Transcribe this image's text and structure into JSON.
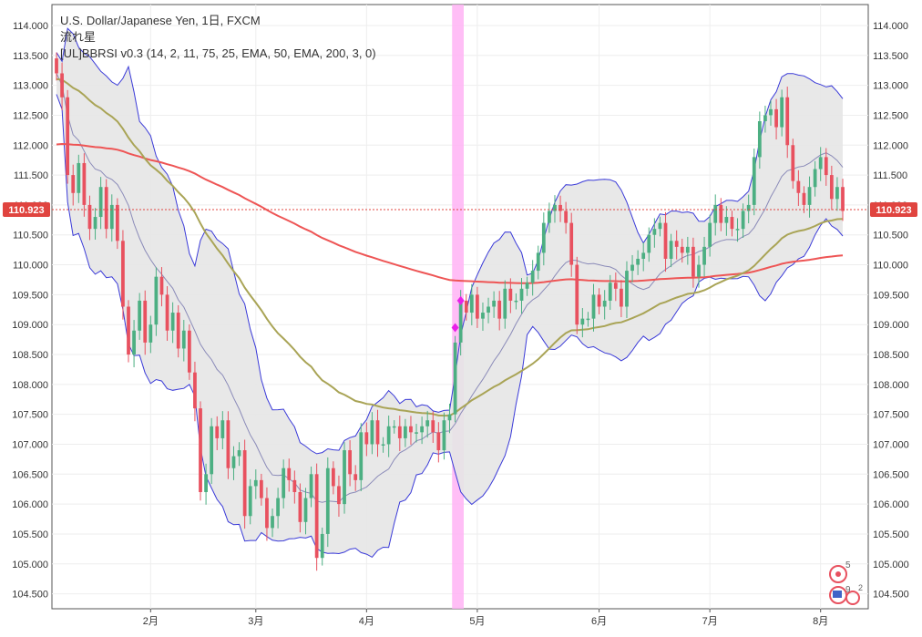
{
  "legend": {
    "symbol": "U.S. Dollar/Japanese Yen, 1日, FXCM",
    "pattern": "流れ星",
    "indicator": "[UL]BBRSI v0.3 (14, 2, 11, 75, 25, EMA, 50, EMA, 200, 3, 0)"
  },
  "colors": {
    "up": "#4caf82",
    "down": "#e8515f",
    "band_fill": "#e6e6e6",
    "band_line": "#3a3ad8",
    "basis_line": "#8a8ab8",
    "ema50": "#a9a456",
    "ema200": "#ee5555",
    "highlight": "#ffb3f5",
    "marker": "#e820e8",
    "price_label": "#e0443f"
  },
  "icons": {
    "badge1": "5",
    "badge2": "9",
    "badge3": "2"
  },
  "chart_data": {
    "type": "candlestick",
    "symbol": "USDJPY",
    "timeframe": "1D",
    "ylim": [
      104.25,
      114.35
    ],
    "y_ticks": [
      104.5,
      105.0,
      105.5,
      106.0,
      106.5,
      107.0,
      107.5,
      108.0,
      108.5,
      109.0,
      109.5,
      110.0,
      110.5,
      111.0,
      111.5,
      112.0,
      112.5,
      113.0,
      113.5,
      114.0
    ],
    "y_tick_labels": [
      "104.500",
      "105.000",
      "105.500",
      "106.000",
      "106.500",
      "107.000",
      "107.500",
      "108.000",
      "108.500",
      "109.000",
      "109.500",
      "110.000",
      "110.500",
      "111.000",
      "111.500",
      "112.000",
      "112.500",
      "113.000",
      "113.500",
      "114.000"
    ],
    "x_labels": [
      {
        "label": "2月",
        "bar": 17
      },
      {
        "label": "3月",
        "bar": 36
      },
      {
        "label": "4月",
        "bar": 56
      },
      {
        "label": "5月",
        "bar": 76
      },
      {
        "label": "6月",
        "bar": 98
      },
      {
        "label": "7月",
        "bar": 118
      },
      {
        "label": "8月",
        "bar": 138
      }
    ],
    "last_price": 110.923,
    "last_price_label": "110.923",
    "highlight_bars": [
      72,
      73
    ],
    "signal_markers": [
      {
        "bar": 72,
        "value": 108.95
      },
      {
        "bar": 73,
        "value": 109.4
      }
    ],
    "closes": [
      113.2,
      112.8,
      111.5,
      111.2,
      111.7,
      111.0,
      110.6,
      110.8,
      111.3,
      110.6,
      111.0,
      110.4,
      109.3,
      108.5,
      108.9,
      109.4,
      108.7,
      109.0,
      109.8,
      109.5,
      108.9,
      109.2,
      108.6,
      108.9,
      108.2,
      107.6,
      106.2,
      106.5,
      107.3,
      107.1,
      107.4,
      106.6,
      106.8,
      106.9,
      105.8,
      106.3,
      106.4,
      106.1,
      105.6,
      105.8,
      106.1,
      106.6,
      106.4,
      106.2,
      105.7,
      106.1,
      106.5,
      105.1,
      105.5,
      106.6,
      106.3,
      106.0,
      106.9,
      106.5,
      106.4,
      107.2,
      107.0,
      107.4,
      107.0,
      107.0,
      107.3,
      107.3,
      107.1,
      107.3,
      107.2,
      107.2,
      107.3,
      107.4,
      107.2,
      106.9,
      107.4,
      107.5,
      108.7,
      109.4,
      109.2,
      109.5,
      109.1,
      109.2,
      109.3,
      109.4,
      109.1,
      109.6,
      109.4,
      109.4,
      109.6,
      109.7,
      109.9,
      110.2,
      110.7,
      110.9,
      111.0,
      110.9,
      110.7,
      110.0,
      109.0,
      109.1,
      109.1,
      109.5,
      109.3,
      109.4,
      109.7,
      109.6,
      109.3,
      109.9,
      110.0,
      110.1,
      110.2,
      110.5,
      110.6,
      110.7,
      110.1,
      110.4,
      110.3,
      110.2,
      110.3,
      109.8,
      110.0,
      110.3,
      110.7,
      111.0,
      110.7,
      110.8,
      110.6,
      110.6,
      110.9,
      111.0,
      111.8,
      112.4,
      112.5,
      112.6,
      112.3,
      112.8,
      112.0,
      111.4,
      111.2,
      111.0,
      111.3,
      111.6,
      111.8,
      111.5,
      111.1,
      111.3,
      110.9
    ],
    "series": [
      {
        "name": "EMA 50",
        "type": "line"
      },
      {
        "name": "EMA 200",
        "type": "line"
      },
      {
        "name": "Bollinger Bands (14, 2)",
        "type": "band"
      }
    ]
  }
}
